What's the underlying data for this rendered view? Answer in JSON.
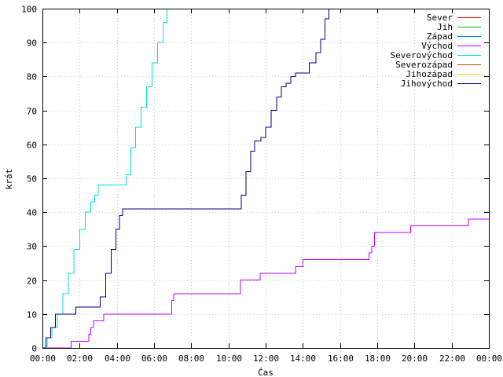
{
  "chart_data": {
    "type": "line",
    "xlabel": "Čas",
    "ylabel": "krát",
    "xlim": [
      0,
      24
    ],
    "ylim": [
      0,
      100
    ],
    "grid": true,
    "legend_position": "top-right",
    "x_tick_values": [
      0,
      2,
      4,
      6,
      8,
      10,
      12,
      14,
      16,
      18,
      20,
      22,
      24
    ],
    "x_tick_labels": [
      "00:00",
      "02:00",
      "04:00",
      "06:00",
      "08:00",
      "10:00",
      "12:00",
      "14:00",
      "16:00",
      "18:00",
      "20:00",
      "22:00",
      "00:00"
    ],
    "y_ticks": [
      0,
      10,
      20,
      30,
      40,
      50,
      60,
      70,
      80,
      90,
      100
    ],
    "series": [
      {
        "name": "Sever",
        "color": "#ff0000",
        "points": []
      },
      {
        "name": "Jih",
        "color": "#00c000",
        "points": []
      },
      {
        "name": "Západ",
        "color": "#0080ff",
        "points": []
      },
      {
        "name": "Východ",
        "color": "#c000ff",
        "points": [
          [
            0,
            0
          ],
          [
            1.5,
            0
          ],
          [
            1.55,
            2
          ],
          [
            2.4,
            2
          ],
          [
            2.5,
            4
          ],
          [
            2.6,
            6
          ],
          [
            2.75,
            8
          ],
          [
            3.2,
            8
          ],
          [
            3.3,
            10
          ],
          [
            6.8,
            10
          ],
          [
            6.95,
            14
          ],
          [
            7.05,
            16
          ],
          [
            10.5,
            16
          ],
          [
            10.65,
            20
          ],
          [
            11.6,
            20
          ],
          [
            11.7,
            22
          ],
          [
            13.5,
            22
          ],
          [
            13.6,
            24
          ],
          [
            13.9,
            24
          ],
          [
            14.0,
            26
          ],
          [
            17.4,
            26
          ],
          [
            17.55,
            28
          ],
          [
            17.7,
            30
          ],
          [
            17.85,
            34
          ],
          [
            19.7,
            34
          ],
          [
            19.8,
            36
          ],
          [
            22.8,
            36
          ],
          [
            22.9,
            38
          ],
          [
            24,
            38
          ]
        ]
      },
      {
        "name": "Severovýchod",
        "color": "#00e0e0",
        "points": [
          [
            0,
            0
          ],
          [
            0.25,
            3
          ],
          [
            0.5,
            6
          ],
          [
            0.8,
            10
          ],
          [
            1.1,
            16
          ],
          [
            1.4,
            22
          ],
          [
            1.7,
            29
          ],
          [
            2.0,
            35
          ],
          [
            2.3,
            40
          ],
          [
            2.6,
            43
          ],
          [
            2.8,
            45
          ],
          [
            3.0,
            48
          ],
          [
            4.3,
            48
          ],
          [
            4.5,
            51
          ],
          [
            4.75,
            59
          ],
          [
            5.0,
            65
          ],
          [
            5.3,
            71
          ],
          [
            5.6,
            77
          ],
          [
            5.9,
            84
          ],
          [
            6.2,
            90
          ],
          [
            6.5,
            96
          ],
          [
            6.7,
            100
          ]
        ]
      },
      {
        "name": "Severozápad",
        "color": "#c05000",
        "points": []
      },
      {
        "name": "Jihozápad",
        "color": "#e0e000",
        "points": []
      },
      {
        "name": "Jihovýchod",
        "color": "#000080",
        "points": [
          [
            0,
            0
          ],
          [
            0.2,
            3
          ],
          [
            0.45,
            6
          ],
          [
            0.7,
            10
          ],
          [
            1.7,
            10
          ],
          [
            1.8,
            12
          ],
          [
            2.9,
            12
          ],
          [
            3.1,
            15
          ],
          [
            3.4,
            22
          ],
          [
            3.7,
            29
          ],
          [
            3.95,
            35
          ],
          [
            4.15,
            39
          ],
          [
            4.3,
            41
          ],
          [
            10.5,
            41
          ],
          [
            10.7,
            45
          ],
          [
            10.95,
            52
          ],
          [
            11.2,
            58
          ],
          [
            11.4,
            61
          ],
          [
            11.75,
            62
          ],
          [
            12.0,
            65
          ],
          [
            12.3,
            70
          ],
          [
            12.6,
            74
          ],
          [
            12.85,
            77
          ],
          [
            13.1,
            78
          ],
          [
            13.35,
            80
          ],
          [
            13.6,
            81
          ],
          [
            14.0,
            81
          ],
          [
            14.35,
            84
          ],
          [
            14.7,
            87
          ],
          [
            14.95,
            91
          ],
          [
            15.2,
            97
          ],
          [
            15.4,
            100
          ]
        ]
      }
    ]
  }
}
